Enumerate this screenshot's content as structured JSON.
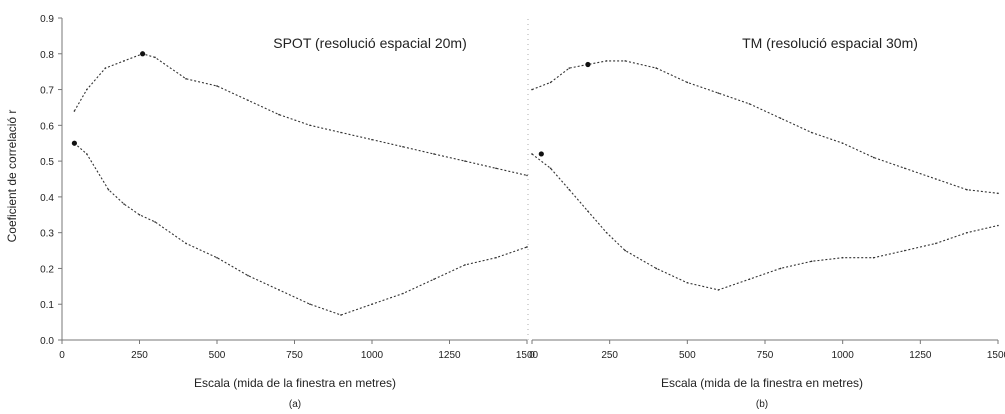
{
  "ylabel": "Coeficient de correlació r",
  "chart_data": [
    {
      "type": "line",
      "title": "SPOT (resolució espacial 20m)",
      "xlabel": "Escala (mida de la finestra en metres)",
      "sublabel": "(a)",
      "ylabel": "Coeficient de correlació r",
      "xlim": [
        0,
        1500
      ],
      "ylim": [
        0,
        0.9
      ],
      "xticks": [
        0,
        250,
        500,
        750,
        1000,
        1250,
        1500
      ],
      "xtick_labels": [
        "0",
        "250",
        "500",
        "750",
        "1000",
        "1250",
        "1500"
      ],
      "yticks": [
        0,
        0.1,
        0.2,
        0.3,
        0.4,
        0.5,
        0.6,
        0.7,
        0.8,
        0.9
      ],
      "ytick_labels": [
        "0.0",
        "0.1",
        "0.2",
        "0.3",
        "0.4",
        "0.5",
        "0.6",
        "0.7",
        "0.8",
        "0.9"
      ],
      "grid": false,
      "series": [
        {
          "x": [
            40,
            80,
            140,
            200,
            260,
            300,
            400,
            500,
            600,
            700,
            800,
            900,
            1000,
            1100,
            1200,
            1300,
            1400,
            1500
          ],
          "values": [
            0.64,
            0.7,
            0.76,
            0.78,
            0.8,
            0.79,
            0.73,
            0.71,
            0.67,
            0.63,
            0.6,
            0.58,
            0.56,
            0.54,
            0.52,
            0.5,
            0.48,
            0.46
          ],
          "marker_x": 260,
          "marker_y": 0.8
        },
        {
          "x": [
            40,
            80,
            150,
            200,
            250,
            300,
            400,
            500,
            600,
            700,
            800,
            900,
            1000,
            1100,
            1200,
            1300,
            1400,
            1500
          ],
          "values": [
            0.55,
            0.52,
            0.42,
            0.38,
            0.35,
            0.33,
            0.27,
            0.23,
            0.18,
            0.14,
            0.1,
            0.07,
            0.1,
            0.13,
            0.17,
            0.21,
            0.23,
            0.26
          ],
          "marker_x": 40,
          "marker_y": 0.55
        }
      ]
    },
    {
      "type": "line",
      "title": "TM (resolució espacial 30m)",
      "xlabel": "Escala (mida de la finestra en metres)",
      "sublabel": "(b)",
      "xlim": [
        0,
        1500
      ],
      "ylim": [
        0,
        0.9
      ],
      "xticks": [
        0,
        250,
        500,
        750,
        1000,
        1250,
        1500
      ],
      "xtick_labels": [
        "0",
        "250",
        "500",
        "750",
        "1000",
        "1250",
        "1500"
      ],
      "grid": false,
      "series": [
        {
          "x": [
            0,
            60,
            120,
            180,
            240,
            300,
            400,
            500,
            600,
            700,
            800,
            900,
            1000,
            1100,
            1200,
            1300,
            1400,
            1500
          ],
          "values": [
            0.7,
            0.72,
            0.76,
            0.77,
            0.78,
            0.78,
            0.76,
            0.72,
            0.69,
            0.66,
            0.62,
            0.58,
            0.55,
            0.51,
            0.48,
            0.45,
            0.42,
            0.41
          ],
          "marker_x": 180,
          "marker_y": 0.77
        },
        {
          "x": [
            0,
            60,
            120,
            180,
            240,
            300,
            400,
            500,
            600,
            700,
            800,
            900,
            1000,
            1100,
            1200,
            1300,
            1400,
            1500
          ],
          "values": [
            0.52,
            0.48,
            0.42,
            0.36,
            0.3,
            0.25,
            0.2,
            0.16,
            0.14,
            0.17,
            0.2,
            0.22,
            0.23,
            0.23,
            0.25,
            0.27,
            0.3,
            0.32
          ],
          "marker_x": 30,
          "marker_y": 0.52
        }
      ]
    }
  ]
}
